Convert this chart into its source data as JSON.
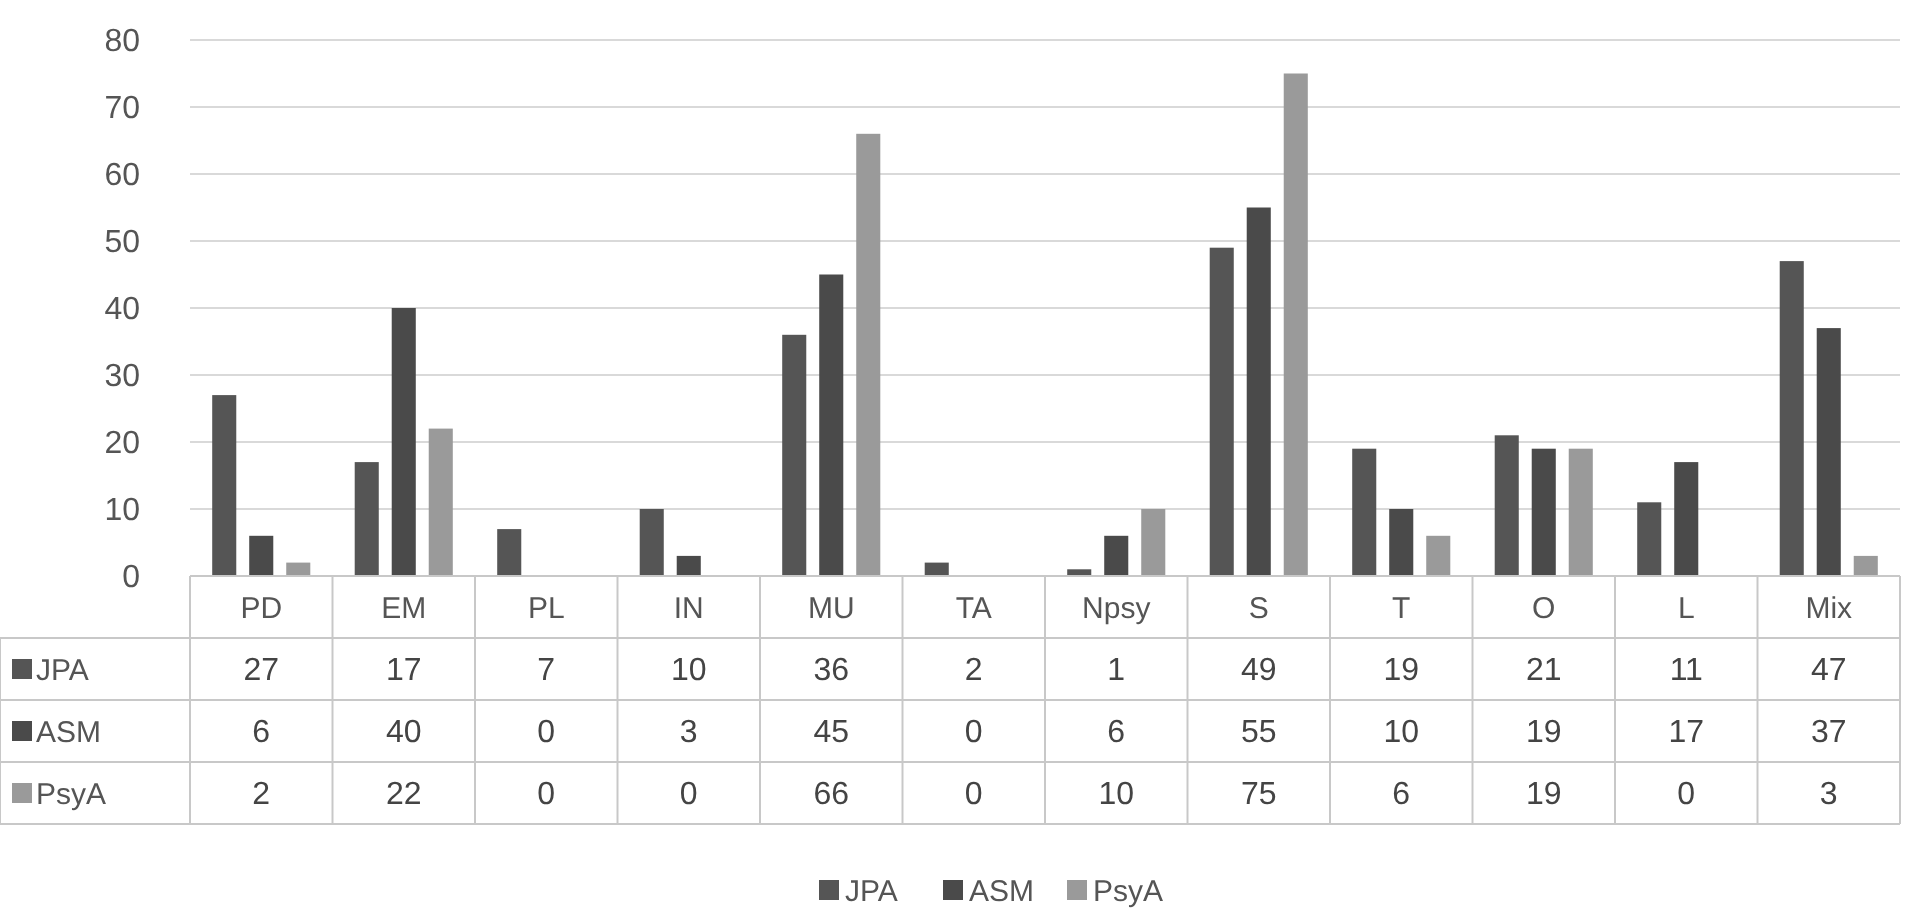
{
  "chart_data": {
    "type": "bar",
    "categories": [
      "PD",
      "EM",
      "PL",
      "IN",
      "MU",
      "TA",
      "Npsy",
      "S",
      "T",
      "O",
      "L",
      "Mix"
    ],
    "series": [
      {
        "name": "JPA",
        "color": "#555555",
        "values": [
          27,
          17,
          7,
          10,
          36,
          2,
          1,
          49,
          19,
          21,
          11,
          47
        ]
      },
      {
        "name": "ASM",
        "color": "#4a4a4a",
        "values": [
          6,
          40,
          0,
          3,
          45,
          0,
          6,
          55,
          10,
          19,
          17,
          37
        ]
      },
      {
        "name": "PsyA",
        "color": "#9a9a9a",
        "values": [
          2,
          22,
          0,
          0,
          66,
          0,
          10,
          75,
          6,
          19,
          0,
          3
        ]
      }
    ],
    "ylim": [
      0,
      80
    ],
    "yticks": [
      0,
      10,
      20,
      30,
      40,
      50,
      60,
      70,
      80
    ],
    "grid": "y",
    "legend": "bottom",
    "data_labels": true
  }
}
